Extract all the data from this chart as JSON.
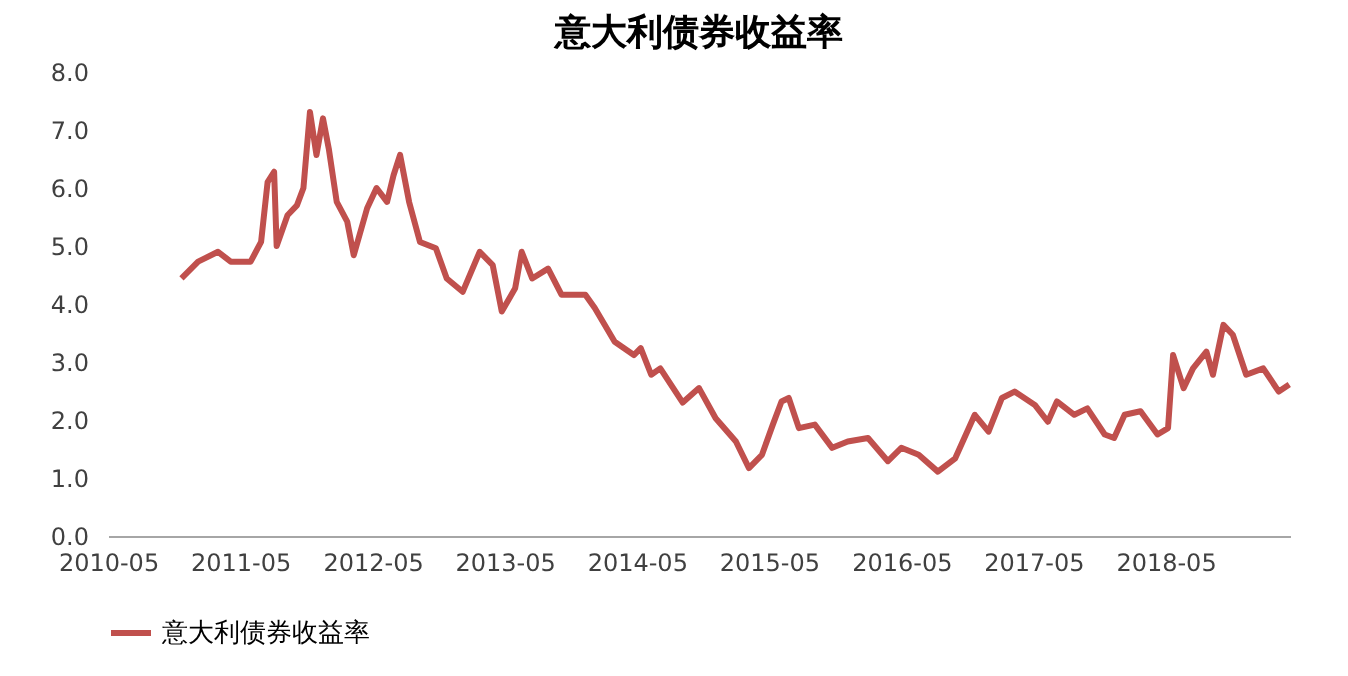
{
  "chart_data": {
    "type": "line",
    "title": "意大利债券收益率",
    "x": [
      "2010-11-20",
      "2011-01-05",
      "2011-03-01",
      "2011-04-05",
      "2011-05-30",
      "2011-06-28",
      "2011-07-16",
      "2011-08-03",
      "2011-08-10",
      "2011-09-09",
      "2011-10-05",
      "2011-10-23",
      "2011-11-10",
      "2011-11-28",
      "2011-12-16",
      "2012-01-01",
      "2012-01-23",
      "2012-02-21",
      "2012-03-10",
      "2012-04-16",
      "2012-05-12",
      "2012-06-10",
      "2012-06-28",
      "2012-07-16",
      "2012-08-10",
      "2012-09-09",
      "2012-10-23",
      "2012-11-22",
      "2013-01-05",
      "2013-02-21",
      "2013-03-29",
      "2013-04-23",
      "2013-05-30",
      "2013-06-17",
      "2013-07-16",
      "2013-08-29",
      "2013-10-05",
      "2013-12-10",
      "2014-01-05",
      "2014-03-01",
      "2014-04-23",
      "2014-05-12",
      "2014-06-10",
      "2014-07-05",
      "2014-09-05",
      "2014-10-20",
      "2014-12-05",
      "2015-01-30",
      "2015-03-07",
      "2015-04-12",
      "2015-05-12",
      "2015-06-05",
      "2015-06-25",
      "2015-07-23",
      "2015-09-05",
      "2015-10-23",
      "2015-12-05",
      "2016-01-30",
      "2016-03-25",
      "2016-05-01",
      "2016-06-18",
      "2016-08-10",
      "2016-09-27",
      "2016-11-20",
      "2016-12-28",
      "2017-02-03",
      "2017-03-10",
      "2017-05-05",
      "2017-06-10",
      "2017-07-05",
      "2017-08-22",
      "2017-09-27",
      "2017-11-14",
      "2017-12-10",
      "2018-01-08",
      "2018-02-21",
      "2018-04-09",
      "2018-05-08",
      "2018-05-22",
      "2018-06-20",
      "2018-07-16",
      "2018-08-22",
      "2018-09-09",
      "2018-10-08",
      "2018-11-03",
      "2018-12-10",
      "2019-01-26",
      "2019-03-10",
      "2019-04-08"
    ],
    "series": [
      {
        "name": "意大利债券收益率",
        "color": "#c0504d",
        "values": [
          4.44,
          4.73,
          4.9,
          4.73,
          4.73,
          5.07,
          6.1,
          6.28,
          5.0,
          5.53,
          5.7,
          6.0,
          7.31,
          6.57,
          7.2,
          6.68,
          5.76,
          5.42,
          4.84,
          5.65,
          6.0,
          5.76,
          6.22,
          6.57,
          5.76,
          5.07,
          4.96,
          4.44,
          4.21,
          4.9,
          4.67,
          3.87,
          4.27,
          4.9,
          4.44,
          4.61,
          4.16,
          4.16,
          3.93,
          3.35,
          3.12,
          3.24,
          2.78,
          2.89,
          2.3,
          2.55,
          2.03,
          1.63,
          1.17,
          1.4,
          1.92,
          2.32,
          2.38,
          1.86,
          1.92,
          1.52,
          1.63,
          1.69,
          1.29,
          1.52,
          1.4,
          1.11,
          1.34,
          2.09,
          1.8,
          2.38,
          2.49,
          2.26,
          1.97,
          2.32,
          2.09,
          2.2,
          1.75,
          1.69,
          2.09,
          2.15,
          1.75,
          1.86,
          3.12,
          2.55,
          2.89,
          3.18,
          2.78,
          3.64,
          3.47,
          2.78,
          2.89,
          2.49,
          2.61
        ]
      }
    ],
    "xlim": [
      "2010-05-01",
      "2019-04-10"
    ],
    "xticks": [
      "2010-05",
      "2011-05",
      "2012-05",
      "2013-05",
      "2014-05",
      "2015-05",
      "2016-05",
      "2017-05",
      "2018-05"
    ],
    "ylim": [
      0,
      8
    ],
    "yticks": [
      {
        "value": 0,
        "label": "0.0"
      },
      {
        "value": 1,
        "label": "1.0"
      },
      {
        "value": 2,
        "label": "2.0"
      },
      {
        "value": 3,
        "label": "3.0"
      },
      {
        "value": 4,
        "label": "4.0"
      },
      {
        "value": 5,
        "label": "5.0"
      },
      {
        "value": 6,
        "label": "6.0"
      },
      {
        "value": 7,
        "label": "7.0"
      },
      {
        "value": 8,
        "label": "8.0"
      }
    ],
    "grid": false,
    "legend": "bottom",
    "line_style": "solid",
    "marker": "none"
  }
}
